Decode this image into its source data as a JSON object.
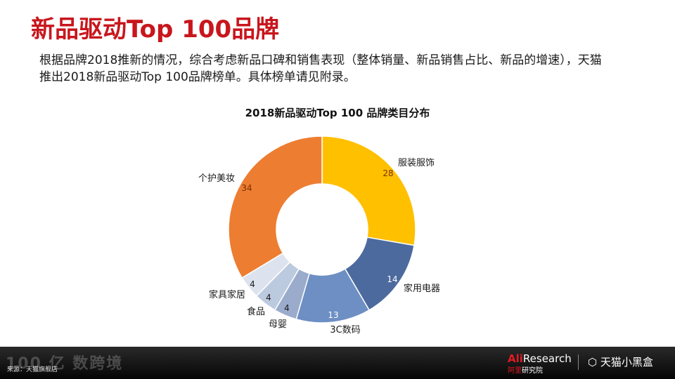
{
  "slide": {
    "title": "新品驱动Top 100品牌",
    "intro": "根据品牌2018推新的情况，综合考虑新品口碑和销售表现（整体销量、新品销售占比、新品的增速），天猫推出2018新品驱动Top 100品牌榜单。具体榜单请见附录。"
  },
  "chart_data": {
    "type": "pie",
    "donut": true,
    "title": "2018新品驱动Top 100 品牌类目分布",
    "categories": [
      "服装服饰",
      "家用电器",
      "3C数码",
      "母婴",
      "食品",
      "家具家居",
      "个护美妆"
    ],
    "values": [
      28,
      14,
      13,
      4,
      4,
      4,
      34
    ],
    "colors": [
      "#ffc000",
      "#4c6a9e",
      "#6d8fc4",
      "#9aabcc",
      "#bccadf",
      "#dde3ee",
      "#ed7d31"
    ],
    "legend": "none"
  },
  "footer": {
    "source": "来源：天猫旗舰店",
    "watermark": "100 亿 数跨境",
    "aliresearch_prefix": "Ali",
    "aliresearch_suffix": "Research",
    "aliresearch_sub_cn": "阿里",
    "aliresearch_sub_cn2": "研究院",
    "tmall_logo": "天猫小黑盒",
    "tmall_icon": "box-icon"
  }
}
